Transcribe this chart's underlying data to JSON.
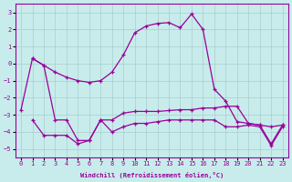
{
  "xlabel": "Windchill (Refroidissement éolien,°C)",
  "bg_color": "#c8ecec",
  "line_color": "#990099",
  "grid_color": "#aacccc",
  "ylim": [
    -5.5,
    3.5
  ],
  "xlim": [
    -0.5,
    23.5
  ],
  "yticks": [
    -5,
    -4,
    -3,
    -2,
    -1,
    0,
    1,
    2,
    3
  ],
  "xticks": [
    0,
    1,
    2,
    3,
    4,
    5,
    6,
    7,
    8,
    9,
    10,
    11,
    12,
    13,
    14,
    15,
    16,
    17,
    18,
    19,
    20,
    21,
    22,
    23
  ],
  "curve1_x": [
    0,
    1,
    2,
    3,
    4,
    5,
    6,
    7,
    8,
    9,
    10,
    11,
    12,
    13,
    14,
    15,
    16,
    17,
    18,
    19,
    20,
    21,
    22,
    23
  ],
  "curve1_y": [
    -2.7,
    0.3,
    -0.1,
    -0.5,
    -0.8,
    -1.0,
    -1.1,
    -1.0,
    -0.5,
    0.5,
    1.8,
    2.2,
    2.35,
    2.4,
    2.1,
    2.9,
    2.0,
    -1.5,
    -2.2,
    -3.4,
    -3.5,
    -3.6,
    -4.7,
    -3.6
  ],
  "curve2_x": [
    1,
    2,
    3,
    4,
    5,
    6,
    7,
    8,
    9,
    10,
    11,
    12,
    13,
    14,
    15,
    16,
    17,
    18,
    19,
    20,
    21,
    22,
    23
  ],
  "curve2_y": [
    0.3,
    -0.1,
    -3.3,
    -3.3,
    -4.5,
    -4.5,
    -3.3,
    -3.3,
    -2.9,
    -2.8,
    -2.8,
    -2.8,
    -2.75,
    -2.7,
    -2.7,
    -2.6,
    -2.6,
    -2.5,
    -2.5,
    -3.5,
    -3.6,
    -3.7,
    -3.6
  ],
  "curve3_x": [
    1,
    2,
    3,
    4,
    5,
    6,
    7,
    8,
    9,
    10,
    11,
    12,
    13,
    14,
    15,
    16,
    17,
    18,
    19,
    20,
    21,
    22,
    23
  ],
  "curve3_y": [
    -3.3,
    -4.2,
    -4.2,
    -4.2,
    -4.7,
    -4.5,
    -3.3,
    -4.0,
    -3.7,
    -3.5,
    -3.5,
    -3.4,
    -3.3,
    -3.3,
    -3.3,
    -3.3,
    -3.3,
    -3.7,
    -3.7,
    -3.6,
    -3.7,
    -4.8,
    -3.7
  ]
}
